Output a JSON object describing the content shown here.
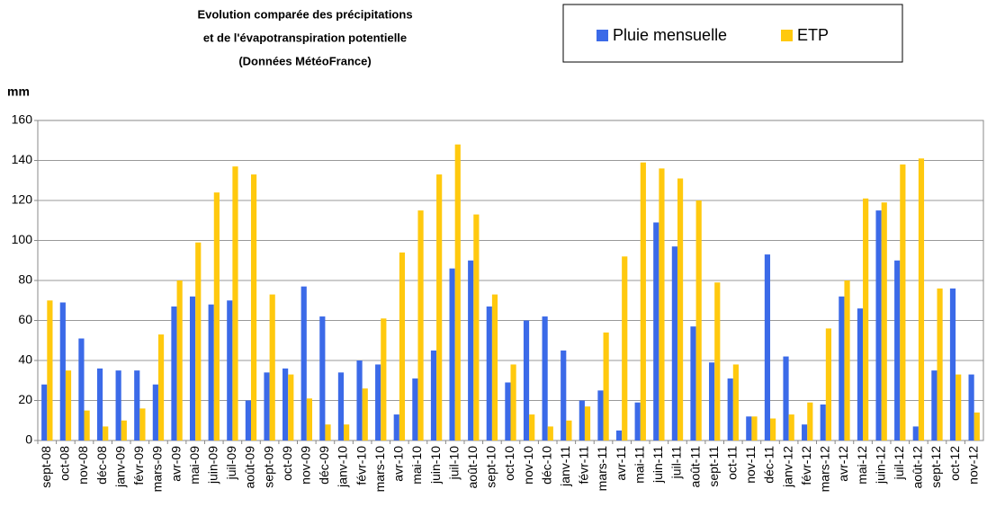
{
  "chart_data": {
    "type": "bar",
    "title": [
      "Evolution comparée des précipitations",
      "et de l'évapotranspiration potentielle",
      "(Données MétéoFrance)"
    ],
    "y_label": "mm",
    "categories": [
      "sept-08",
      "oct-08",
      "nov-08",
      "déc-08",
      "janv-09",
      "févr-09",
      "mars-09",
      "avr-09",
      "mai-09",
      "juin-09",
      "juil-09",
      "août-09",
      "sept-09",
      "oct-09",
      "nov-09",
      "déc-09",
      "janv-10",
      "févr-10",
      "mars-10",
      "avr-10",
      "mai-10",
      "juin-10",
      "juil-10",
      "août-10",
      "sept-10",
      "oct-10",
      "nov-10",
      "déc-10",
      "janv-11",
      "févr-11",
      "mars-11",
      "avr-11",
      "mai-11",
      "juin-11",
      "juil-11",
      "août-11",
      "sept-11",
      "oct-11",
      "nov-11",
      "déc-11",
      "janv-12",
      "févr-12",
      "mars-12",
      "avr-12",
      "mai-12",
      "juin-12",
      "juil-12",
      "août-12",
      "sept-12",
      "oct-12",
      "nov-12"
    ],
    "series": [
      {
        "name": "Pluie mensuelle",
        "color": "#3b6ae8",
        "values": [
          28,
          69,
          51,
          36,
          35,
          35,
          28,
          67,
          72,
          68,
          70,
          20,
          34,
          36,
          77,
          62,
          34,
          40,
          38,
          13,
          31,
          45,
          86,
          90,
          67,
          29,
          60,
          62,
          45,
          20,
          25,
          5,
          19,
          109,
          97,
          57,
          39,
          31,
          12,
          93,
          42,
          8,
          18,
          72,
          66,
          115,
          90,
          7,
          35,
          76,
          33
        ]
      },
      {
        "name": "ETP",
        "color": "#ffc90e",
        "values": [
          70,
          35,
          15,
          7,
          10,
          16,
          53,
          80,
          99,
          124,
          137,
          133,
          73,
          33,
          21,
          8,
          8,
          26,
          61,
          94,
          115,
          133,
          148,
          113,
          73,
          38,
          13,
          7,
          10,
          17,
          54,
          92,
          139,
          136,
          131,
          120,
          79,
          38,
          12,
          11,
          13,
          19,
          56,
          80,
          121,
          119,
          138,
          141,
          76,
          33,
          14
        ]
      }
    ],
    "ylim": [
      0,
      160
    ],
    "yticks": [
      0,
      20,
      40,
      60,
      80,
      100,
      120,
      140,
      160
    ],
    "grid": true,
    "legend": "top-right"
  }
}
